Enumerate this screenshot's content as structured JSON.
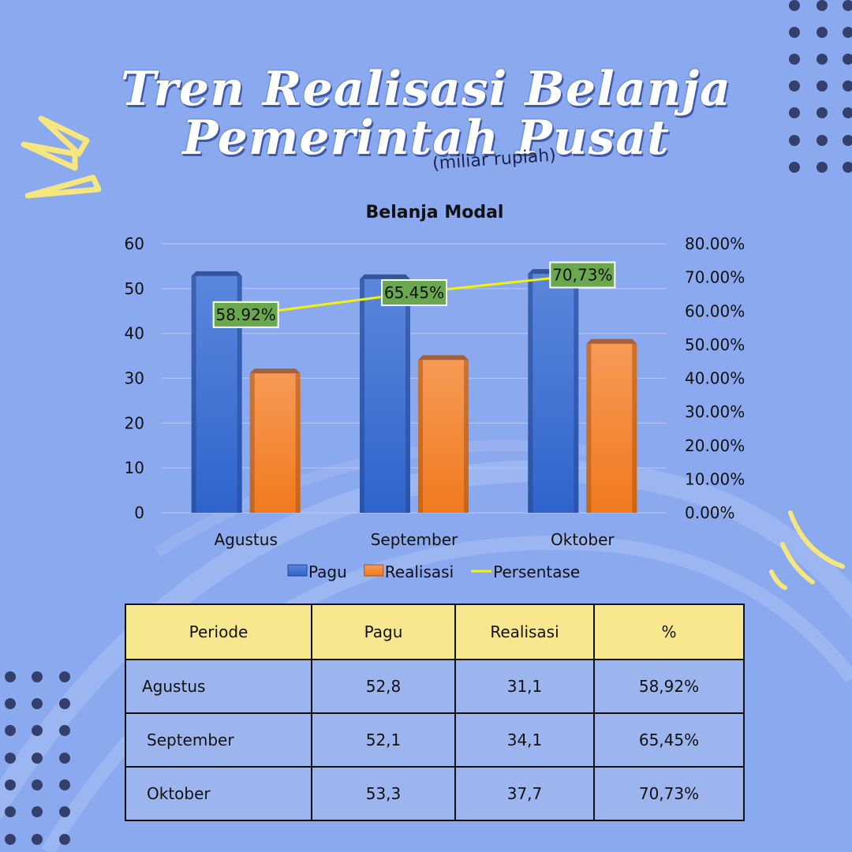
{
  "header": {
    "title_line1": "Tren Realisasi Belanja",
    "title_line2": "Pemerintah Pusat",
    "subtitle": "(miliar rupiah)"
  },
  "chart_data": {
    "type": "bar",
    "title": "Belanja Modal",
    "categories": [
      "Agustus",
      "September",
      "Oktober"
    ],
    "series": [
      {
        "name": "Pagu",
        "type": "bar",
        "axis": "left",
        "values": [
          52.8,
          52.1,
          53.3
        ],
        "color": "#3a6fd0"
      },
      {
        "name": "Realisasi",
        "type": "bar",
        "axis": "left",
        "values": [
          31.1,
          34.1,
          37.7
        ],
        "color": "#f28530"
      },
      {
        "name": "Persentase",
        "type": "line",
        "axis": "right",
        "values": [
          58.92,
          65.45,
          70.73
        ],
        "color": "#f2f20a",
        "data_labels": [
          "58.92%",
          "65.45%",
          "70,73%"
        ],
        "label_bg": "#6aa84f"
      }
    ],
    "ylim": [
      0,
      60
    ],
    "yticks": [
      "0",
      "10",
      "20",
      "30",
      "40",
      "50",
      "60"
    ],
    "y2lim": [
      0,
      80
    ],
    "y2ticks": [
      "0.00%",
      "10.00%",
      "20.00%",
      "30.00%",
      "40.00%",
      "50.00%",
      "60.00%",
      "70.00%",
      "80.00%"
    ],
    "grid": true,
    "legend_position": "bottom"
  },
  "table": {
    "headers": [
      "Periode",
      "Pagu",
      "Realisasi",
      "%"
    ],
    "rows": [
      [
        "Agustus",
        "52,8",
        "31,1",
        "58,92%"
      ],
      [
        "September",
        "52,1",
        "34,1",
        "65,45%"
      ],
      [
        "Oktober",
        "53,3",
        "37,7",
        "70,73%"
      ]
    ]
  },
  "theme": {
    "background": "#8aa9ef",
    "accent_yellow": "#f7e88f",
    "dot_color": "#34406b"
  }
}
